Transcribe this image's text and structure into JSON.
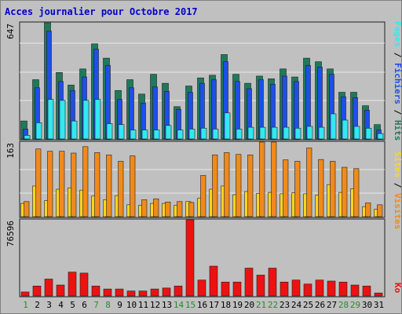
{
  "chart_data": [
    {
      "type": "bar",
      "title": "Acces journalier pour Octobre 2017",
      "categories": [
        "1",
        "2",
        "3",
        "4",
        "5",
        "6",
        "7",
        "8",
        "9",
        "10",
        "11",
        "12",
        "13",
        "14",
        "15",
        "16",
        "17",
        "18",
        "19",
        "20",
        "21",
        "22",
        "23",
        "24",
        "25",
        "26",
        "27",
        "28",
        "29",
        "30",
        "31"
      ],
      "weekend_categories": [
        "1",
        "7",
        "8",
        "14",
        "15",
        "21",
        "22",
        "28",
        "29"
      ],
      "ymax_label": "647",
      "ylim": [
        0,
        647
      ],
      "legend": [
        "Pages",
        "Fichiers",
        "Hits"
      ],
      "series": [
        {
          "name": "Hits",
          "color": "#1e7a5a",
          "values": [
            100,
            330,
            647,
            370,
            300,
            390,
            530,
            450,
            270,
            330,
            250,
            360,
            310,
            180,
            295,
            340,
            355,
            470,
            360,
            310,
            350,
            335,
            390,
            345,
            450,
            430,
            390,
            260,
            260,
            185,
            80
          ]
        },
        {
          "name": "Fichiers",
          "color": "#1d4fe8",
          "values": [
            55,
            285,
            600,
            320,
            270,
            345,
            500,
            410,
            220,
            285,
            200,
            290,
            265,
            165,
            260,
            310,
            330,
            430,
            320,
            280,
            330,
            305,
            350,
            320,
            410,
            400,
            360,
            235,
            230,
            160,
            50
          ]
        },
        {
          "name": "Pages",
          "color": "#33e8f0",
          "values": [
            20,
            90,
            220,
            215,
            100,
            215,
            220,
            85,
            80,
            50,
            50,
            50,
            75,
            50,
            55,
            60,
            55,
            145,
            55,
            65,
            65,
            65,
            65,
            60,
            70,
            65,
            140,
            105,
            70,
            60,
            30
          ]
        }
      ]
    },
    {
      "type": "bar",
      "categories": [
        "1",
        "2",
        "3",
        "4",
        "5",
        "6",
        "7",
        "8",
        "9",
        "10",
        "11",
        "12",
        "13",
        "14",
        "15",
        "16",
        "17",
        "18",
        "19",
        "20",
        "21",
        "22",
        "23",
        "24",
        "25",
        "26",
        "27",
        "28",
        "29",
        "30",
        "31"
      ],
      "ymax_label": "163",
      "ylim": [
        0,
        163
      ],
      "legend": [
        "Sites",
        "Visites"
      ],
      "series": [
        {
          "name": "Visites",
          "color": "#f08a1c",
          "values": [
            33,
            148,
            143,
            143,
            139,
            153,
            140,
            135,
            121,
            133,
            37,
            39,
            32,
            33,
            31,
            90,
            135,
            140,
            136,
            135,
            163,
            163,
            124,
            121,
            150,
            125,
            121,
            108,
            105,
            30,
            26
          ]
        },
        {
          "name": "Sites",
          "color": "#ffd51c",
          "values": [
            29,
            67,
            35,
            60,
            63,
            58,
            45,
            37,
            46,
            26,
            25,
            29,
            29,
            25,
            33,
            40,
            60,
            67,
            48,
            55,
            51,
            53,
            50,
            52,
            50,
            47,
            70,
            53,
            61,
            22,
            16
          ]
        }
      ]
    },
    {
      "type": "bar",
      "categories": [
        "1",
        "2",
        "3",
        "4",
        "5",
        "6",
        "7",
        "8",
        "9",
        "10",
        "11",
        "12",
        "13",
        "14",
        "15",
        "16",
        "17",
        "18",
        "19",
        "20",
        "21",
        "22",
        "23",
        "24",
        "25",
        "26",
        "27",
        "28",
        "29",
        "30",
        "31"
      ],
      "ymax_label": "76596",
      "ylim": [
        0,
        76596
      ],
      "legend": [
        "Ko"
      ],
      "series": [
        {
          "name": "Ko",
          "color": "#ee1111",
          "values": [
            4000,
            10000,
            17000,
            11000,
            24000,
            23000,
            10000,
            7000,
            7000,
            5000,
            5000,
            7000,
            8000,
            10000,
            76596,
            16000,
            30000,
            14000,
            14000,
            28000,
            21000,
            28000,
            14000,
            16000,
            12000,
            16000,
            15000,
            14000,
            11000,
            10000,
            3000
          ]
        }
      ]
    }
  ]
}
